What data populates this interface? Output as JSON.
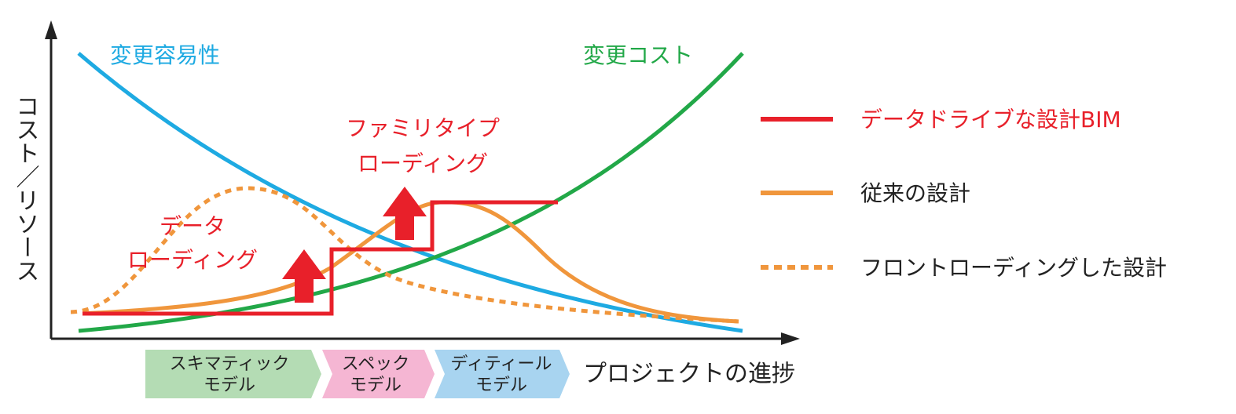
{
  "axes": {
    "y_label": "コスト／リソース",
    "x_label": "プロジェクトの進捗"
  },
  "curve_labels": {
    "ease_of_change": "変更容易性",
    "cost_of_change": "変更コスト"
  },
  "annotations": {
    "data_loading": [
      "データ",
      "ローディング"
    ],
    "family_type_loading": [
      "ファミリタイプ",
      "ローディング"
    ]
  },
  "legend": [
    "データドライブな設計BIM",
    "従来の設計",
    "フロントローディングした設計"
  ],
  "phases": [
    [
      "スキマティック",
      "モデル"
    ],
    [
      "スペック",
      "モデル"
    ],
    [
      "ディティール",
      "モデル"
    ]
  ]
}
